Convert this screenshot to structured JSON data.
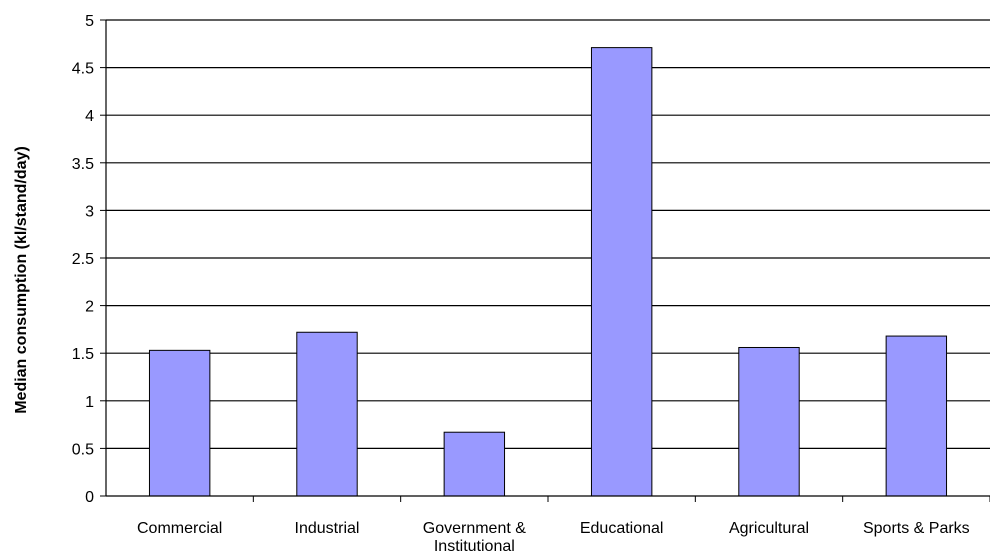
{
  "chart_data": {
    "type": "bar",
    "title": "",
    "xlabel": "",
    "ylabel": "Median consumption (kl/stand/day)",
    "categories": [
      [
        "Commercial"
      ],
      [
        "Industrial"
      ],
      [
        "Government &",
        "Institutional"
      ],
      [
        "Educational"
      ],
      [
        "Agricultural"
      ],
      [
        "Sports & Parks"
      ]
    ],
    "values": [
      1.53,
      1.72,
      0.67,
      4.71,
      1.56,
      1.68
    ],
    "ylim": [
      0,
      5
    ],
    "yticks": [
      "0",
      "0.5",
      "1",
      "1.5",
      "2",
      "2.5",
      "3",
      "3.5",
      "4",
      "4.5",
      "5"
    ],
    "ytick_values": [
      0,
      0.5,
      1,
      1.5,
      2,
      2.5,
      3,
      3.5,
      4,
      4.5,
      5
    ],
    "grid": true,
    "legend": "none",
    "colors": {
      "bar_fill": "#9999ff",
      "bar_stroke": "#000000",
      "gridline": "#000000",
      "axis": "#000000"
    }
  }
}
